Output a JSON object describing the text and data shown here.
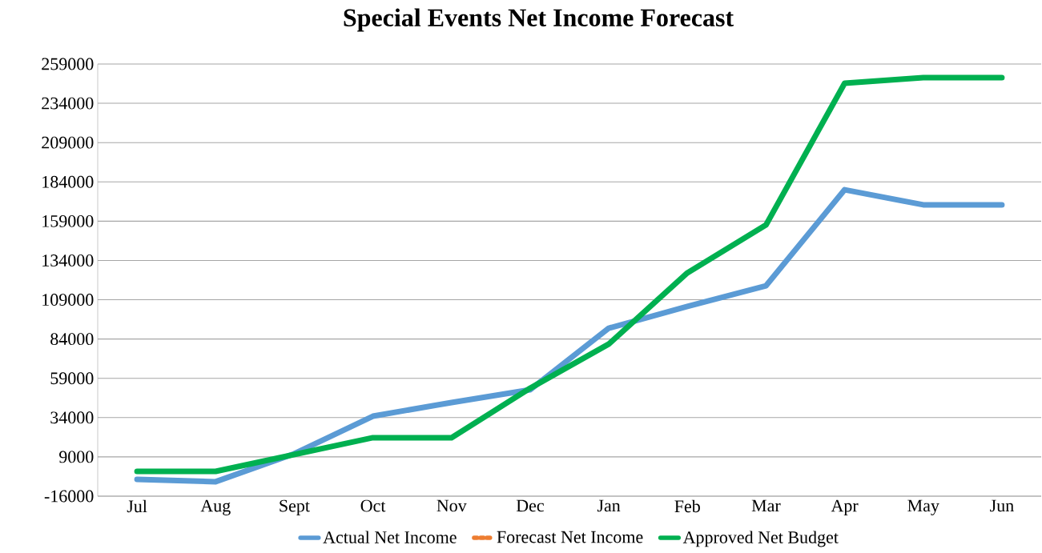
{
  "chart_data": {
    "type": "line",
    "title": "Special Events Net Income Forecast",
    "categories": [
      "Jul",
      "Aug",
      "Sept",
      "Oct",
      "Nov",
      "Dec",
      "Jan",
      "Feb",
      "Mar",
      "Apr",
      "May",
      "Jun"
    ],
    "series": [
      {
        "name": "Actual Net Income",
        "color": "#5b9bd5",
        "values": [
          -5300,
          -6800,
          11000,
          34900,
          43600,
          51700,
          90900,
          104700,
          117900,
          179000,
          169400,
          169400
        ]
      },
      {
        "name": "Forecast Net Income",
        "color": "#ed7d31",
        "line_style": "dashed",
        "values": [
          null,
          null,
          null,
          null,
          null,
          null,
          null,
          null,
          null,
          null,
          null,
          null
        ]
      },
      {
        "name": "Approved Net Budget",
        "color": "#00b050",
        "values": [
          -200,
          -200,
          10500,
          21200,
          21200,
          52700,
          80800,
          126100,
          156600,
          246800,
          250300,
          250300
        ]
      }
    ],
    "ylim": [
      -16000,
      259000
    ],
    "yticks": [
      -16000,
      9000,
      34000,
      59000,
      84000,
      109000,
      134000,
      159000,
      184000,
      209000,
      234000,
      259000
    ],
    "grid": "y",
    "legend": "bottom",
    "marker": "none",
    "line_style": "solid"
  }
}
